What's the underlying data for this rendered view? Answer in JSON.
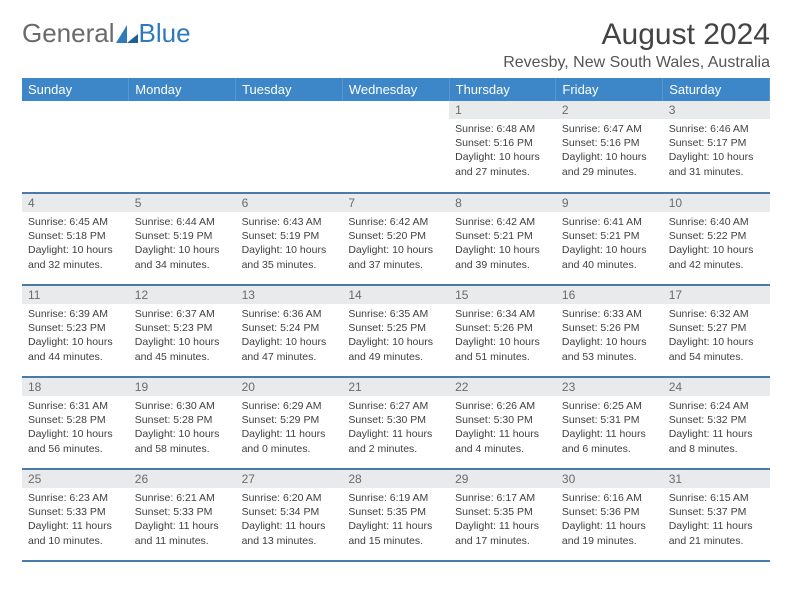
{
  "logo": {
    "textLeft": "General",
    "textRight": "Blue"
  },
  "title": "August 2024",
  "location": "Revesby, New South Wales, Australia",
  "colors": {
    "headerBg": "#3d87c9",
    "headerText": "#ffffff",
    "dayBarBg": "#e9eaeb",
    "dayBarText": "#6b6b6b",
    "rowDivider": "#4a7ba8",
    "bodyText": "#3f3f3f",
    "logoBlue": "#2f79bd",
    "logoGray": "#6a6a6a"
  },
  "fonts": {
    "title_pt": 30,
    "location_pt": 16,
    "weekday_pt": 13,
    "daynum_pt": 12,
    "info_pt": 10.5
  },
  "weekdays": [
    "Sunday",
    "Monday",
    "Tuesday",
    "Wednesday",
    "Thursday",
    "Friday",
    "Saturday"
  ],
  "grid": [
    [
      {
        "empty": true
      },
      {
        "empty": true
      },
      {
        "empty": true
      },
      {
        "empty": true
      },
      {
        "n": "1",
        "sr": "6:48 AM",
        "ss": "5:16 PM",
        "dl": "10 hours and 27 minutes."
      },
      {
        "n": "2",
        "sr": "6:47 AM",
        "ss": "5:16 PM",
        "dl": "10 hours and 29 minutes."
      },
      {
        "n": "3",
        "sr": "6:46 AM",
        "ss": "5:17 PM",
        "dl": "10 hours and 31 minutes."
      }
    ],
    [
      {
        "n": "4",
        "sr": "6:45 AM",
        "ss": "5:18 PM",
        "dl": "10 hours and 32 minutes."
      },
      {
        "n": "5",
        "sr": "6:44 AM",
        "ss": "5:19 PM",
        "dl": "10 hours and 34 minutes."
      },
      {
        "n": "6",
        "sr": "6:43 AM",
        "ss": "5:19 PM",
        "dl": "10 hours and 35 minutes."
      },
      {
        "n": "7",
        "sr": "6:42 AM",
        "ss": "5:20 PM",
        "dl": "10 hours and 37 minutes."
      },
      {
        "n": "8",
        "sr": "6:42 AM",
        "ss": "5:21 PM",
        "dl": "10 hours and 39 minutes."
      },
      {
        "n": "9",
        "sr": "6:41 AM",
        "ss": "5:21 PM",
        "dl": "10 hours and 40 minutes."
      },
      {
        "n": "10",
        "sr": "6:40 AM",
        "ss": "5:22 PM",
        "dl": "10 hours and 42 minutes."
      }
    ],
    [
      {
        "n": "11",
        "sr": "6:39 AM",
        "ss": "5:23 PM",
        "dl": "10 hours and 44 minutes."
      },
      {
        "n": "12",
        "sr": "6:37 AM",
        "ss": "5:23 PM",
        "dl": "10 hours and 45 minutes."
      },
      {
        "n": "13",
        "sr": "6:36 AM",
        "ss": "5:24 PM",
        "dl": "10 hours and 47 minutes."
      },
      {
        "n": "14",
        "sr": "6:35 AM",
        "ss": "5:25 PM",
        "dl": "10 hours and 49 minutes."
      },
      {
        "n": "15",
        "sr": "6:34 AM",
        "ss": "5:26 PM",
        "dl": "10 hours and 51 minutes."
      },
      {
        "n": "16",
        "sr": "6:33 AM",
        "ss": "5:26 PM",
        "dl": "10 hours and 53 minutes."
      },
      {
        "n": "17",
        "sr": "6:32 AM",
        "ss": "5:27 PM",
        "dl": "10 hours and 54 minutes."
      }
    ],
    [
      {
        "n": "18",
        "sr": "6:31 AM",
        "ss": "5:28 PM",
        "dl": "10 hours and 56 minutes."
      },
      {
        "n": "19",
        "sr": "6:30 AM",
        "ss": "5:28 PM",
        "dl": "10 hours and 58 minutes."
      },
      {
        "n": "20",
        "sr": "6:29 AM",
        "ss": "5:29 PM",
        "dl": "11 hours and 0 minutes."
      },
      {
        "n": "21",
        "sr": "6:27 AM",
        "ss": "5:30 PM",
        "dl": "11 hours and 2 minutes."
      },
      {
        "n": "22",
        "sr": "6:26 AM",
        "ss": "5:30 PM",
        "dl": "11 hours and 4 minutes."
      },
      {
        "n": "23",
        "sr": "6:25 AM",
        "ss": "5:31 PM",
        "dl": "11 hours and 6 minutes."
      },
      {
        "n": "24",
        "sr": "6:24 AM",
        "ss": "5:32 PM",
        "dl": "11 hours and 8 minutes."
      }
    ],
    [
      {
        "n": "25",
        "sr": "6:23 AM",
        "ss": "5:33 PM",
        "dl": "11 hours and 10 minutes."
      },
      {
        "n": "26",
        "sr": "6:21 AM",
        "ss": "5:33 PM",
        "dl": "11 hours and 11 minutes."
      },
      {
        "n": "27",
        "sr": "6:20 AM",
        "ss": "5:34 PM",
        "dl": "11 hours and 13 minutes."
      },
      {
        "n": "28",
        "sr": "6:19 AM",
        "ss": "5:35 PM",
        "dl": "11 hours and 15 minutes."
      },
      {
        "n": "29",
        "sr": "6:17 AM",
        "ss": "5:35 PM",
        "dl": "11 hours and 17 minutes."
      },
      {
        "n": "30",
        "sr": "6:16 AM",
        "ss": "5:36 PM",
        "dl": "11 hours and 19 minutes."
      },
      {
        "n": "31",
        "sr": "6:15 AM",
        "ss": "5:37 PM",
        "dl": "11 hours and 21 minutes."
      }
    ]
  ]
}
